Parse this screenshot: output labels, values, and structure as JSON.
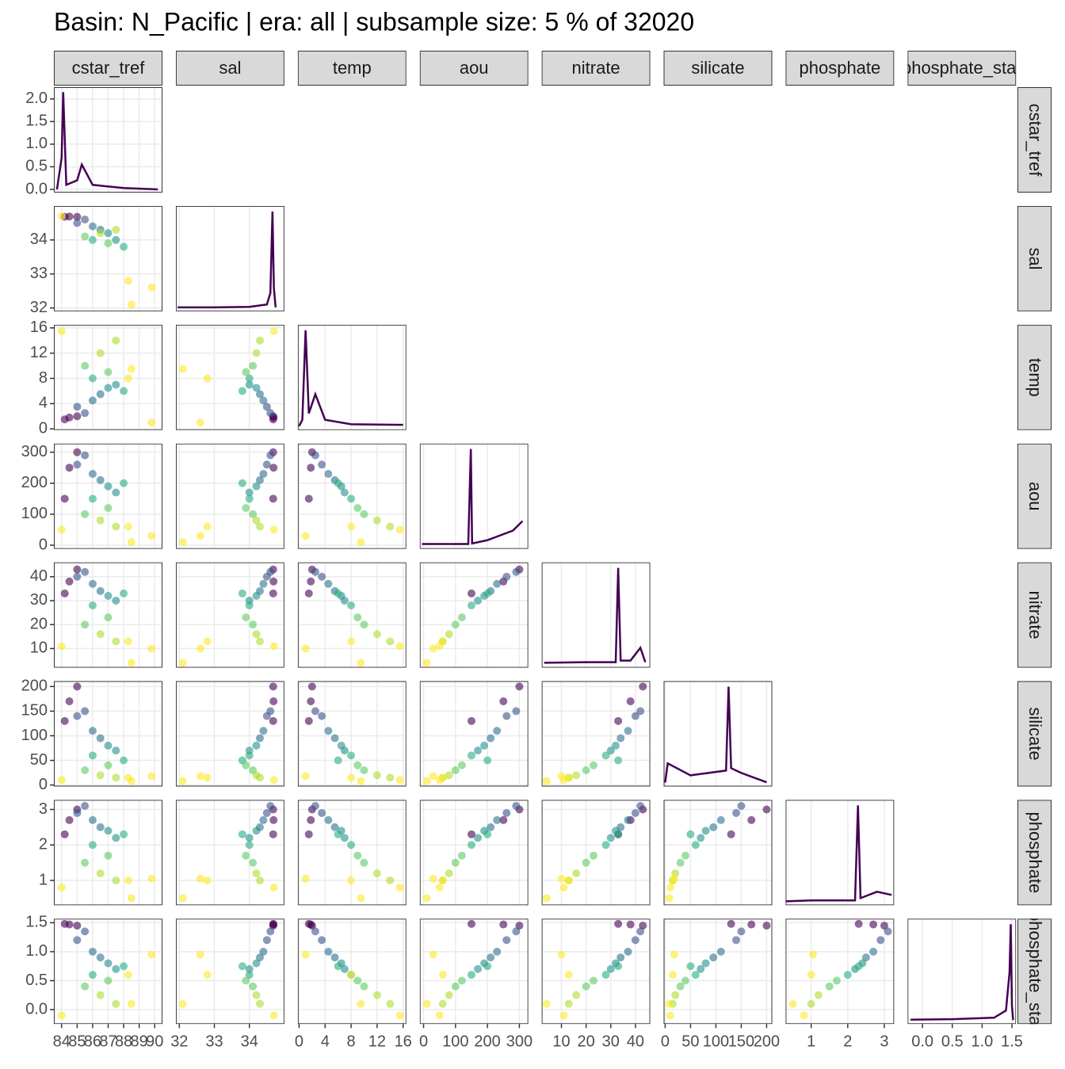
{
  "chart_data": {
    "type": "pairs",
    "title": "Basin: N_Pacific | era: all | subsample size: 5 % of 32020",
    "grid": true,
    "density_color": "#440154",
    "density_ylim": [
      -0.07,
      2.26
    ],
    "density_yticks": [
      {
        "value": 0,
        "label": "0.0"
      },
      {
        "value": 0.5,
        "label": "0.5"
      },
      {
        "value": 1,
        "label": "1.0"
      },
      {
        "value": 1.5,
        "label": "1.5"
      },
      {
        "value": 2,
        "label": "2.0"
      }
    ],
    "variables": [
      {
        "name": "cstar_tref",
        "lim": [
          83.5,
          90.5
        ],
        "ticks": [
          84,
          85,
          86,
          87,
          88,
          89,
          90
        ],
        "density_x": [
          83.7,
          84.0,
          84.1,
          84.3,
          85.0,
          85.3,
          86,
          88,
          90.2
        ],
        "density_y": [
          0,
          0.7,
          2.15,
          0.1,
          0.2,
          0.55,
          0.1,
          0.03,
          0
        ]
      },
      {
        "name": "sal",
        "lim": [
          31.9,
          35.0
        ],
        "ticks": [
          32,
          33,
          34
        ],
        "density_x": [
          31.95,
          33,
          34,
          34.5,
          34.6,
          34.66,
          34.7,
          34.75
        ],
        "density_y": [
          0,
          0,
          0.05,
          0.3,
          1.5,
          10,
          2,
          0
        ]
      },
      {
        "name": "temp",
        "lim": [
          -0.2,
          16.5
        ],
        "ticks": [
          0,
          4,
          8,
          12,
          16
        ],
        "density_x": [
          0,
          0.5,
          1,
          1.5,
          2.5,
          4,
          8,
          16
        ],
        "density_y": [
          0,
          1,
          15,
          2,
          5,
          1,
          0.3,
          0.2
        ]
      },
      {
        "name": "aou",
        "lim": [
          -12,
          328
        ],
        "ticks": [
          0,
          100,
          200,
          300
        ],
        "density_x": [
          -5,
          100,
          140,
          148,
          152,
          200,
          280,
          310
        ],
        "density_y": [
          0.2,
          0.2,
          0.2,
          20,
          0.3,
          1,
          3,
          5
        ]
      },
      {
        "name": "nitrate",
        "lim": [
          2,
          46
        ],
        "ticks": [
          10,
          20,
          30,
          40
        ],
        "density_x": [
          3,
          20,
          32,
          33,
          34,
          38,
          42,
          44
        ],
        "density_y": [
          0.3,
          0.5,
          0.5,
          30,
          1,
          1,
          5,
          0.5
        ]
      },
      {
        "name": "silicate",
        "lim": [
          -3,
          211
        ],
        "ticks": [
          0,
          50,
          100,
          150,
          200
        ],
        "density_x": [
          0,
          5,
          50,
          120,
          125,
          130,
          150,
          200
        ],
        "density_y": [
          0,
          8,
          3,
          5,
          40,
          6,
          4,
          0.1
        ]
      },
      {
        "name": "phosphate",
        "lim": [
          0.3,
          3.27
        ],
        "ticks": [
          1,
          2,
          3
        ],
        "density_x": [
          0.3,
          1,
          2.2,
          2.28,
          2.35,
          2.8,
          3.2
        ],
        "density_y": [
          0,
          0.3,
          0.3,
          30,
          1,
          3,
          2
        ]
      },
      {
        "name": "phosphate_star",
        "lim": [
          -0.25,
          1.57
        ],
        "ticks": [
          {
            "value": 0,
            "label": "0.0"
          },
          {
            "value": 0.5,
            "label": "0.5"
          },
          {
            "value": 1,
            "label": "1.0"
          },
          {
            "value": 1.5,
            "label": "1.5"
          }
        ],
        "density_x": [
          -0.2,
          0.5,
          1.2,
          1.4,
          1.46,
          1.48,
          1.5,
          1.52
        ],
        "density_y": [
          0.1,
          0.2,
          0.5,
          2,
          10,
          20,
          3,
          0
        ]
      }
    ],
    "observations": [
      {
        "values": [
          84.2,
          34.68,
          1.5,
          150,
          33,
          130,
          2.3,
          1.48
        ],
        "color": "#440154"
      },
      {
        "values": [
          84.5,
          34.69,
          1.8,
          250,
          38,
          170,
          2.7,
          1.47
        ],
        "color": "#440154"
      },
      {
        "values": [
          85,
          34.68,
          2,
          300,
          43,
          200,
          3.0,
          1.45
        ],
        "color": "#440154"
      },
      {
        "values": [
          85.5,
          34.6,
          2.5,
          290,
          42,
          150,
          3.1,
          1.35
        ],
        "color": "#3b528b"
      },
      {
        "values": [
          85.0,
          34.5,
          3.5,
          260,
          40,
          140,
          2.9,
          1.2
        ],
        "color": "#3b528b"
      },
      {
        "values": [
          86,
          34.4,
          4.5,
          230,
          37,
          110,
          2.7,
          1.0
        ],
        "color": "#2c728e"
      },
      {
        "values": [
          86.5,
          34.3,
          5.5,
          210,
          34,
          95,
          2.5,
          0.9
        ],
        "color": "#2c728e"
      },
      {
        "values": [
          87,
          34.2,
          6.5,
          190,
          32,
          80,
          2.4,
          0.8
        ],
        "color": "#21918c"
      },
      {
        "values": [
          87.5,
          34.0,
          7,
          170,
          30,
          70,
          2.2,
          0.7
        ],
        "color": "#21918c"
      },
      {
        "values": [
          86,
          34.0,
          8,
          150,
          28,
          60,
          2.0,
          0.6
        ],
        "color": "#27ad81"
      },
      {
        "values": [
          88,
          33.8,
          6,
          200,
          33,
          50,
          2.3,
          0.75
        ],
        "color": "#27ad81"
      },
      {
        "values": [
          87,
          33.9,
          9,
          120,
          23,
          40,
          1.7,
          0.5
        ],
        "color": "#5ec962"
      },
      {
        "values": [
          85.5,
          34.1,
          10,
          100,
          20,
          30,
          1.5,
          0.4
        ],
        "color": "#5ec962"
      },
      {
        "values": [
          86.5,
          34.2,
          12,
          80,
          16,
          20,
          1.2,
          0.25
        ],
        "color": "#addc30"
      },
      {
        "values": [
          87.5,
          34.3,
          14,
          60,
          13,
          15,
          1.0,
          0.1
        ],
        "color": "#addc30"
      },
      {
        "values": [
          84,
          34.7,
          15.5,
          50,
          11,
          10,
          0.8,
          -0.1
        ],
        "color": "#fde725"
      },
      {
        "values": [
          88.3,
          32.8,
          8,
          60,
          13,
          15,
          1.0,
          0.6
        ],
        "color": "#fde725"
      },
      {
        "values": [
          88.5,
          32.1,
          9.5,
          10,
          4,
          8,
          0.5,
          0.1
        ],
        "color": "#fde725"
      },
      {
        "values": [
          89.8,
          32.6,
          1,
          30,
          10,
          18,
          1.05,
          0.95
        ],
        "color": "#fde725"
      }
    ]
  }
}
